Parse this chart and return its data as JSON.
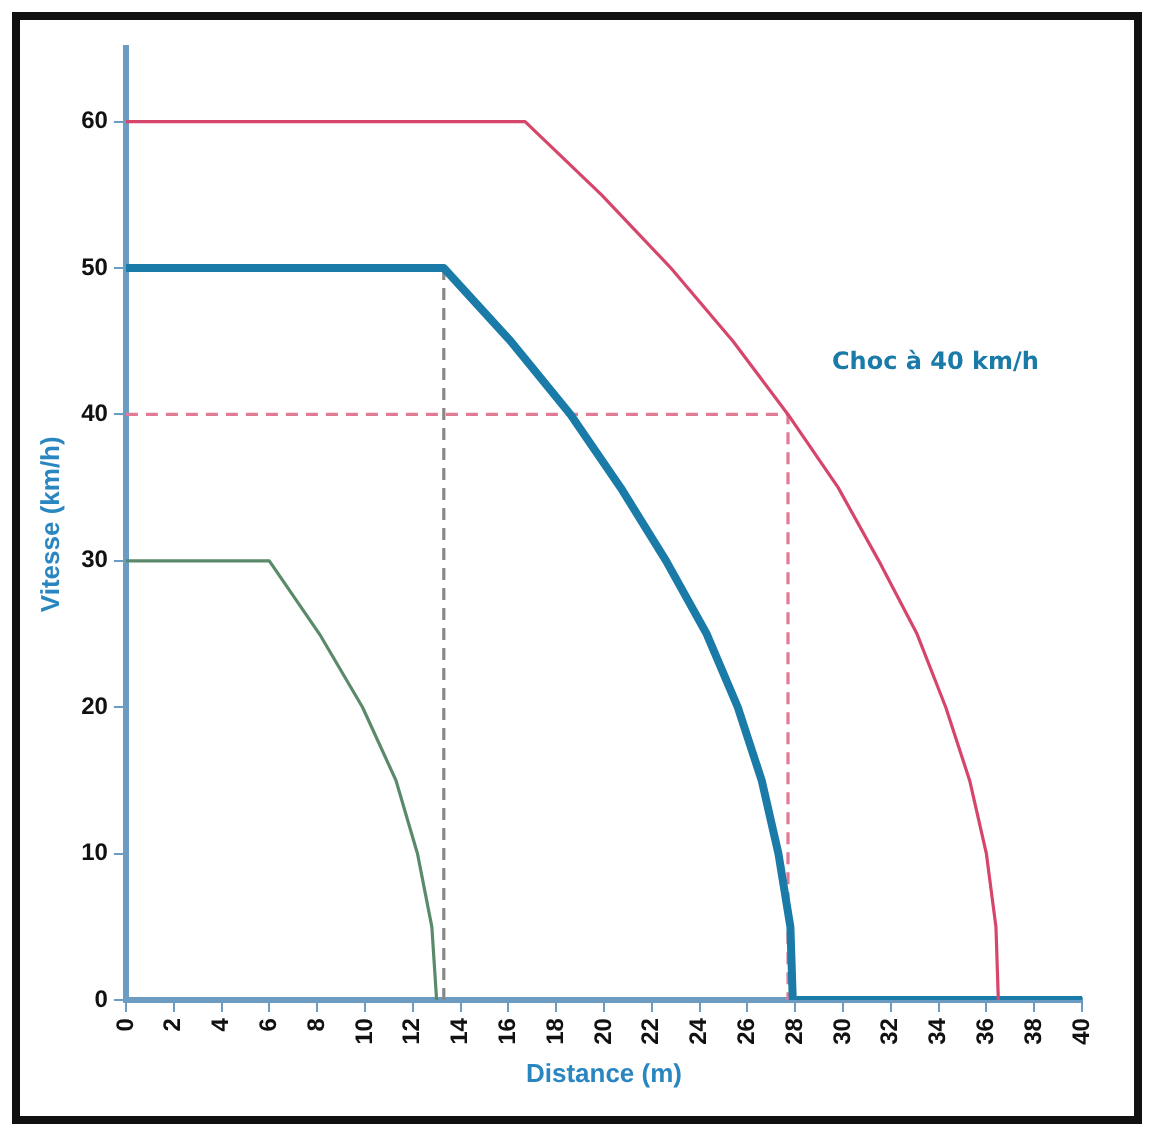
{
  "chart_data": {
    "type": "line",
    "xlabel": "Distance (m)",
    "ylabel": "Vitesse (km/h)",
    "xlim": [
      0,
      40
    ],
    "xticks": [
      0,
      2,
      4,
      6,
      8,
      10,
      12,
      14,
      16,
      18,
      20,
      22,
      24,
      26,
      28,
      30,
      32,
      34,
      36,
      38,
      40
    ],
    "ylim": [
      0,
      65
    ],
    "yticks": [
      0,
      10,
      20,
      30,
      40,
      50,
      60
    ],
    "grid": false,
    "legend": false,
    "marker": "none",
    "line_style": "solid",
    "annotations": [
      {
        "text": "Choc à 40 km/h",
        "x": 27.7,
        "y": 40
      }
    ],
    "series": [
      {
        "color": "#d6456a",
        "x": [
          0,
          16.7,
          19.9,
          22.8,
          25.4,
          27.7,
          29.8,
          31.5,
          33.1,
          34.3,
          35.3,
          36.0,
          36.4,
          36.5
        ],
        "values": [
          60,
          60,
          55,
          50,
          45,
          40,
          35,
          30,
          25,
          20,
          15,
          10,
          5,
          0
        ]
      },
      {
        "color": "#1a7aa8",
        "x": [
          0,
          13.3,
          16.1,
          18.6,
          20.7,
          22.6,
          24.3,
          25.6,
          26.6,
          27.3,
          27.8,
          27.9,
          40
        ],
        "values": [
          50,
          50,
          45,
          40,
          35,
          30,
          25,
          20,
          15,
          10,
          5,
          0,
          0
        ]
      },
      {
        "color": "#5a8a6a",
        "x": [
          0,
          6,
          8.1,
          9.9,
          11.3,
          12.2,
          12.8,
          13.0
        ],
        "values": [
          30,
          30,
          25,
          20,
          15,
          10,
          5,
          0
        ]
      },
      {
        "color": "#888888",
        "line_style": "dashed",
        "x": [
          13.3,
          13.3
        ],
        "values": [
          0,
          50
        ]
      },
      {
        "color": "#e07a95",
        "line_style": "dashed",
        "x": [
          0,
          27.7,
          27.7
        ],
        "values": [
          40,
          40,
          0
        ]
      }
    ]
  }
}
